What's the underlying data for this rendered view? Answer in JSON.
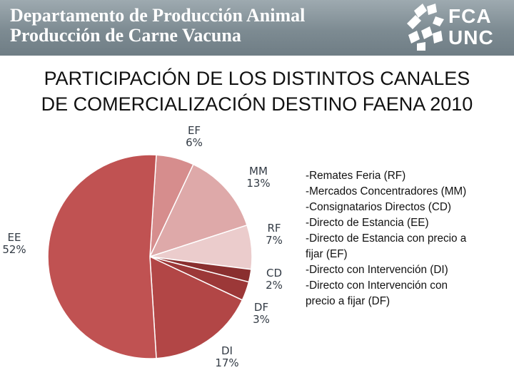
{
  "header": {
    "line1": "Departamento de Producción Animal",
    "line2": "Producción de Carne Vacuna",
    "logo_top": "FCA",
    "logo_bottom": "UNC"
  },
  "slide": {
    "title_line1": "PARTICIPACIÓN DE LOS DISTINTOS CANALES",
    "title_line2": "DE COMERCIALIZACIÓN DESTINO FAENA 2010"
  },
  "legend": [
    "-Remates Feria (RF)",
    "-Mercados Concentradores (MM)",
    "-Consignatarios Directos (CD)",
    "-Directo de Estancia (EE)",
    "-Directo de Estancia con precio a",
    "fijar (EF)",
    "-Directo con Intervención (DI)",
    "-Directo con Intervención con",
    "precio a fijar (DF)"
  ],
  "colors": {
    "header_bg": "#7d8b92"
  },
  "chart_data": {
    "type": "pie",
    "title": "",
    "slices": [
      {
        "code": "EF",
        "label": "6%",
        "value": 6,
        "color": "#d68d8d"
      },
      {
        "code": "MM",
        "label": "13%",
        "value": 13,
        "color": "#dea9a9"
      },
      {
        "code": "RF",
        "label": "7%",
        "value": 7,
        "color": "#ebcccc"
      },
      {
        "code": "CD",
        "label": "2%",
        "value": 2,
        "color": "#8a2f2f"
      },
      {
        "code": "DF",
        "label": "3%",
        "value": 3,
        "color": "#9c3838"
      },
      {
        "code": "DI",
        "label": "17%",
        "value": 17,
        "color": "#b24646"
      },
      {
        "code": "EE",
        "label": "52%",
        "value": 52,
        "color": "#c05252"
      }
    ]
  }
}
